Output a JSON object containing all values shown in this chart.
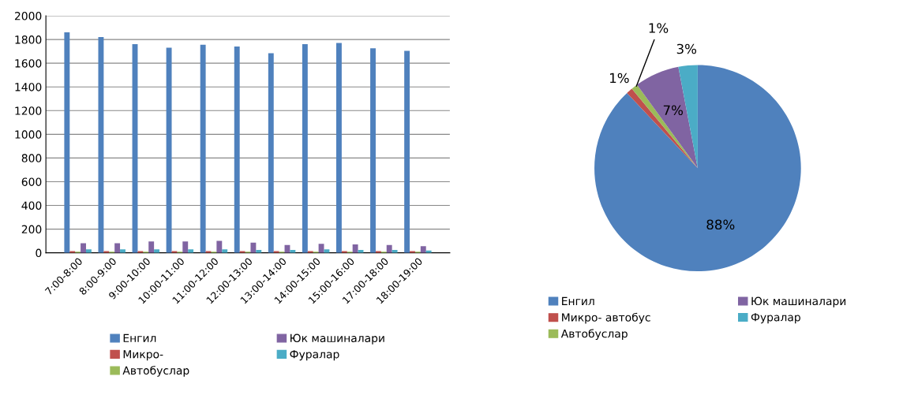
{
  "chart_data": [
    {
      "type": "bar",
      "categories": [
        "7:00-8:00",
        "8:00-9:00",
        "9:00-10:00",
        "10:00-11:00",
        "11:00-12:00",
        "12:00-13:00",
        "13:00-14:00",
        "14:00-15:00",
        "15:00-16:00",
        "17:00-18:00",
        "18:00-19:00"
      ],
      "series": [
        {
          "name": "Енгил",
          "color": "#4f81bd",
          "values": [
            1860,
            1820,
            1760,
            1730,
            1755,
            1740,
            1685,
            1760,
            1770,
            1725,
            1705
          ]
        },
        {
          "name": "Микро-",
          "color": "#c0504d",
          "values": [
            15,
            15,
            15,
            15,
            15,
            15,
            15,
            15,
            15,
            15,
            15
          ]
        },
        {
          "name": "Автобуслар",
          "color": "#9bbb59",
          "values": [
            10,
            10,
            10,
            10,
            10,
            10,
            10,
            10,
            10,
            10,
            10
          ]
        },
        {
          "name": "Юк машиналари",
          "color": "#8064a2",
          "values": [
            80,
            80,
            95,
            95,
            100,
            85,
            65,
            75,
            70,
            65,
            55
          ]
        },
        {
          "name": "Фуралар",
          "color": "#4bacc6",
          "values": [
            30,
            30,
            30,
            30,
            30,
            25,
            25,
            30,
            25,
            25,
            20
          ]
        }
      ],
      "ylim": [
        0,
        2000
      ],
      "yticks": [
        0,
        200,
        400,
        600,
        800,
        1000,
        1200,
        1400,
        1600,
        1800,
        2000
      ],
      "grid": "y",
      "legend": "bottom"
    },
    {
      "type": "pie",
      "categories": [
        "Енгил",
        "Микро- автобус",
        "Автобуслар",
        "Юк машиналари",
        "Фуралар"
      ],
      "values": [
        88,
        1,
        1,
        7,
        3
      ],
      "colors": [
        "#4f81bd",
        "#c0504d",
        "#9bbb59",
        "#8064a2",
        "#4bacc6"
      ],
      "value_labels": [
        "88%",
        "1%",
        "1%",
        "7%",
        "3%"
      ],
      "legend": "bottom"
    }
  ]
}
